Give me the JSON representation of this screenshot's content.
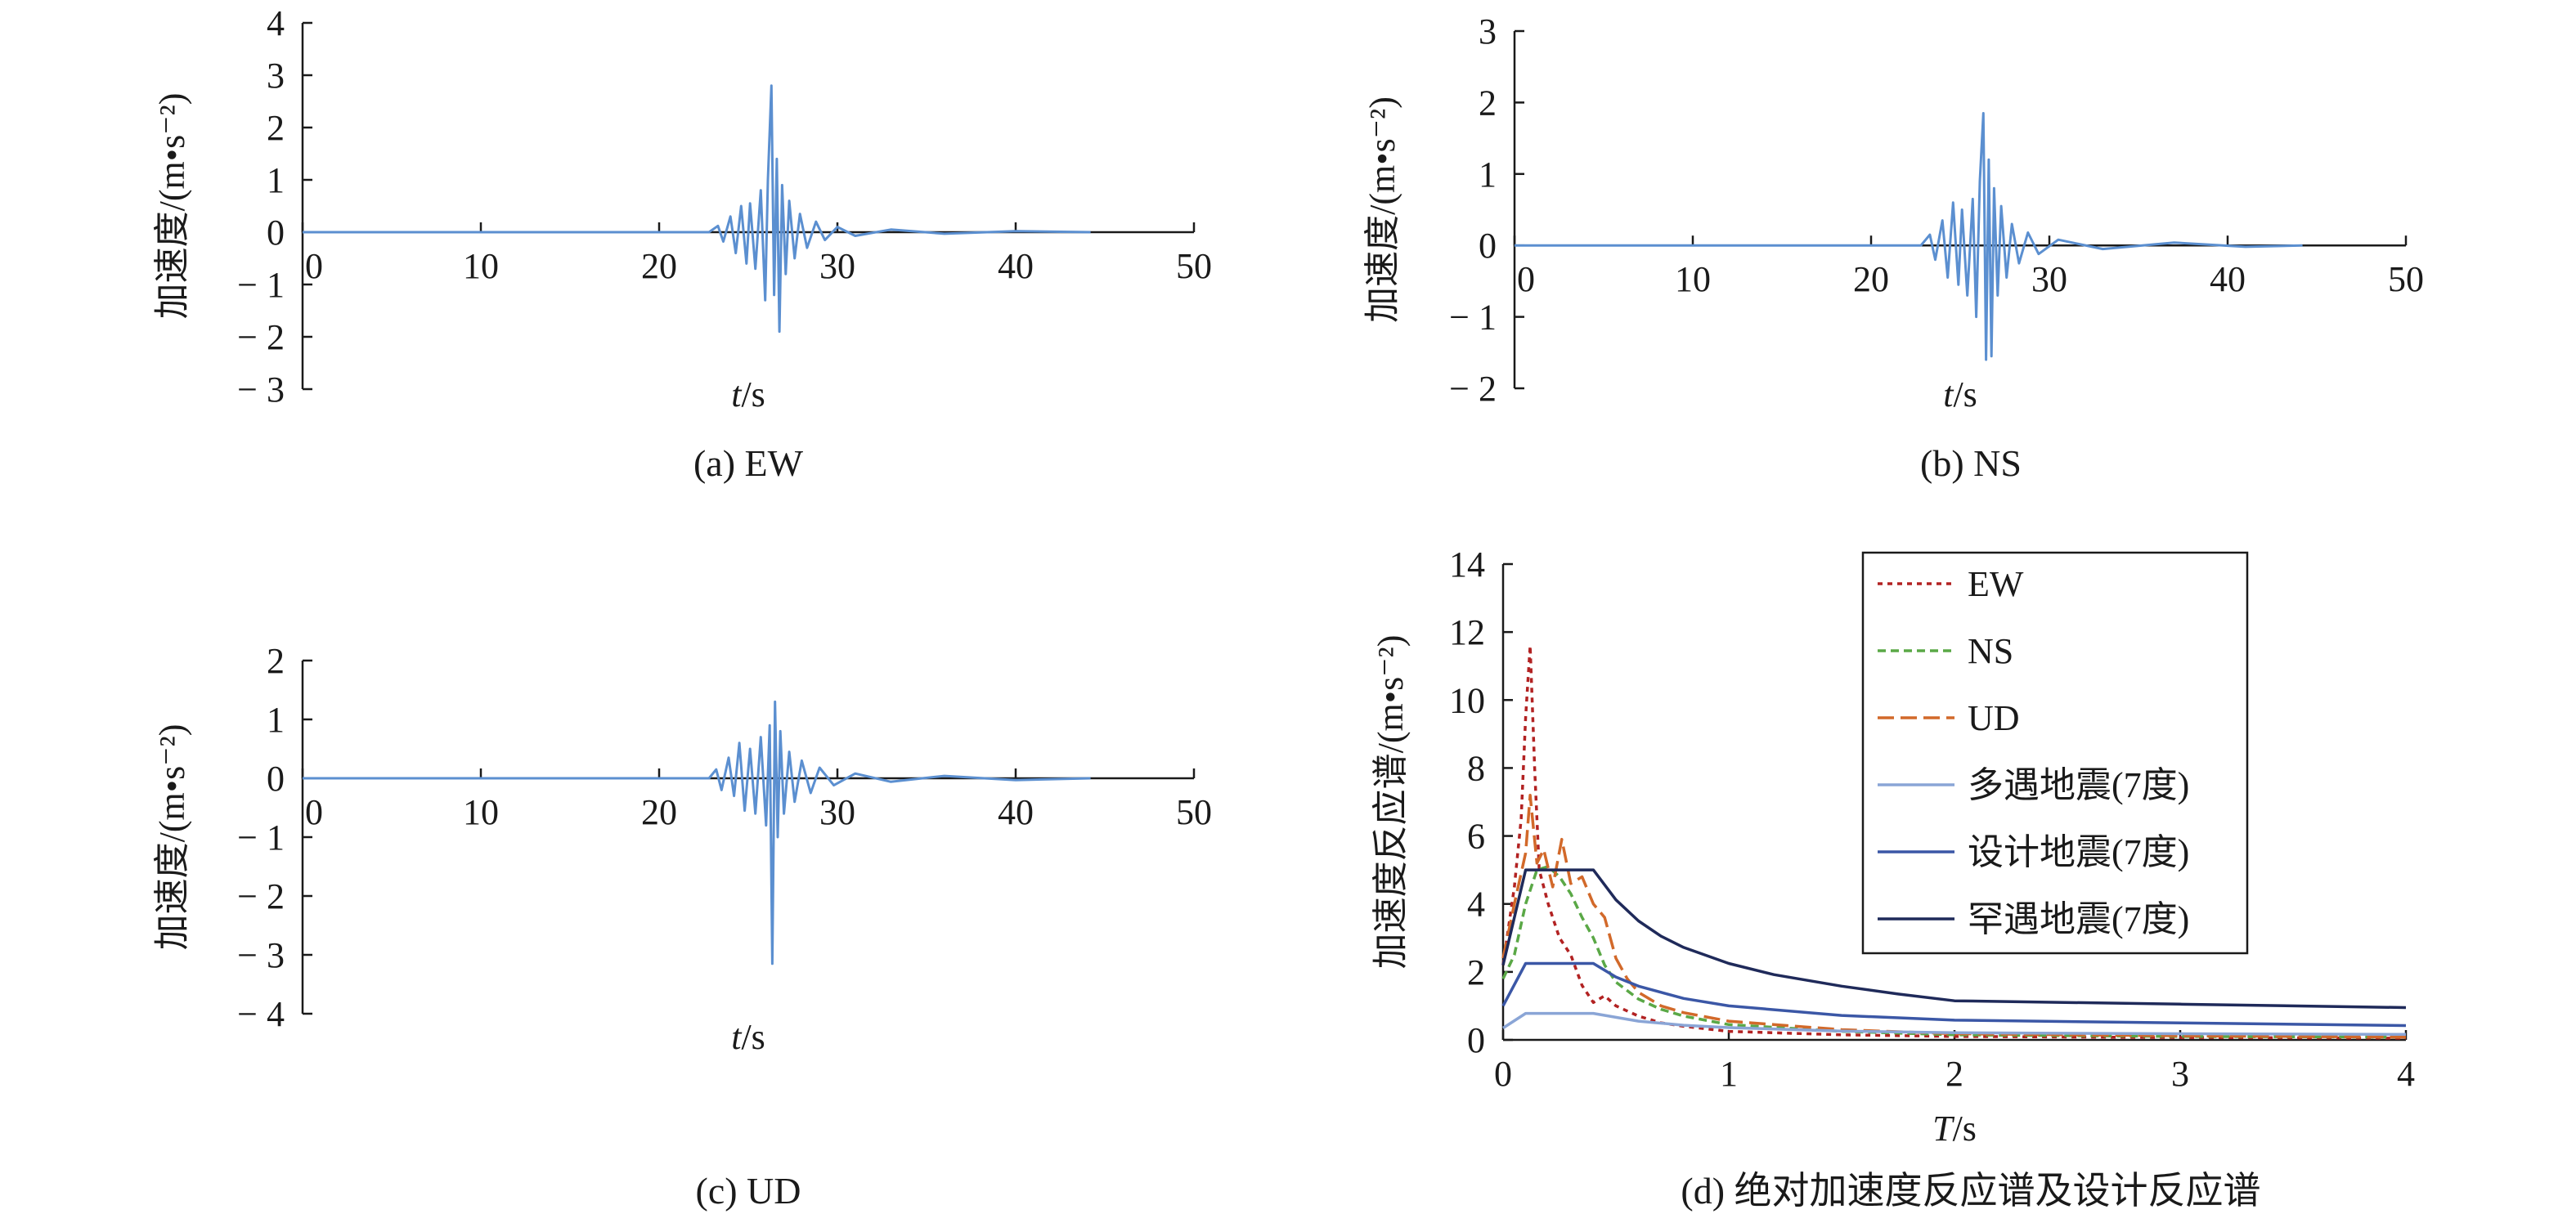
{
  "chart_data": [
    {
      "id": "a",
      "type": "line",
      "caption": "(a) EW",
      "xlabel_italic": "t",
      "xlabel_unit": "/s",
      "ylabel": "加速度/(m•s⁻²)",
      "xlim": [
        0,
        50
      ],
      "ylim": [
        -3,
        4
      ],
      "xticks": [
        0,
        10,
        20,
        30,
        40,
        50
      ],
      "yticks": [
        -3,
        -2,
        -1,
        0,
        1,
        2,
        3,
        4
      ],
      "series": [
        {
          "color": "#5b8fd0",
          "points": [
            [
              0,
              0
            ],
            [
              22.8,
              0
            ],
            [
              23.3,
              0.12
            ],
            [
              23.6,
              -0.18
            ],
            [
              24.0,
              0.3
            ],
            [
              24.3,
              -0.4
            ],
            [
              24.6,
              0.5
            ],
            [
              24.9,
              -0.6
            ],
            [
              25.1,
              0.55
            ],
            [
              25.4,
              -0.7
            ],
            [
              25.7,
              0.8
            ],
            [
              25.95,
              -1.3
            ],
            [
              26.1,
              1.0
            ],
            [
              26.3,
              2.8
            ],
            [
              26.45,
              -1.2
            ],
            [
              26.6,
              1.4
            ],
            [
              26.75,
              -1.9
            ],
            [
              26.9,
              0.9
            ],
            [
              27.1,
              -0.8
            ],
            [
              27.3,
              0.6
            ],
            [
              27.6,
              -0.5
            ],
            [
              27.9,
              0.35
            ],
            [
              28.3,
              -0.3
            ],
            [
              28.8,
              0.2
            ],
            [
              29.3,
              -0.15
            ],
            [
              30,
              0.1
            ],
            [
              31,
              -0.07
            ],
            [
              33,
              0.05
            ],
            [
              36,
              -0.03
            ],
            [
              40,
              0.02
            ],
            [
              44.2,
              0
            ]
          ]
        }
      ]
    },
    {
      "id": "b",
      "type": "line",
      "caption": "(b) NS",
      "xlabel_italic": "t",
      "xlabel_unit": "/s",
      "ylabel": "加速度/(m•s⁻²)",
      "xlim": [
        0,
        50
      ],
      "ylim": [
        -2,
        3
      ],
      "xticks": [
        0,
        10,
        20,
        30,
        40,
        50
      ],
      "yticks": [
        -2,
        -1,
        0,
        1,
        2,
        3
      ],
      "series": [
        {
          "color": "#5b8fd0",
          "points": [
            [
              0,
              0
            ],
            [
              22.8,
              0
            ],
            [
              23.3,
              0.15
            ],
            [
              23.6,
              -0.2
            ],
            [
              24.0,
              0.35
            ],
            [
              24.3,
              -0.45
            ],
            [
              24.6,
              0.6
            ],
            [
              24.9,
              -0.55
            ],
            [
              25.1,
              0.5
            ],
            [
              25.4,
              -0.7
            ],
            [
              25.7,
              0.65
            ],
            [
              25.9,
              -1.0
            ],
            [
              26.1,
              0.9
            ],
            [
              26.3,
              1.85
            ],
            [
              26.45,
              -1.6
            ],
            [
              26.6,
              1.2
            ],
            [
              26.75,
              -1.55
            ],
            [
              26.9,
              0.8
            ],
            [
              27.1,
              -0.7
            ],
            [
              27.3,
              0.55
            ],
            [
              27.6,
              -0.45
            ],
            [
              27.9,
              0.3
            ],
            [
              28.3,
              -0.25
            ],
            [
              28.8,
              0.18
            ],
            [
              29.4,
              -0.12
            ],
            [
              30.5,
              0.08
            ],
            [
              33,
              -0.05
            ],
            [
              37,
              0.04
            ],
            [
              41,
              -0.02
            ],
            [
              44.2,
              0
            ]
          ]
        }
      ]
    },
    {
      "id": "c",
      "type": "line",
      "caption": "(c) UD",
      "xlabel_italic": "t",
      "xlabel_unit": "/s",
      "ylabel": "加速度/(m•s⁻²)",
      "xlim": [
        0,
        50
      ],
      "ylim": [
        -4,
        2
      ],
      "xticks": [
        0,
        10,
        20,
        30,
        40,
        50
      ],
      "yticks": [
        -4,
        -3,
        -2,
        -1,
        0,
        1,
        2
      ],
      "series": [
        {
          "color": "#5b8fd0",
          "points": [
            [
              0,
              0
            ],
            [
              22.8,
              0
            ],
            [
              23.2,
              0.15
            ],
            [
              23.5,
              -0.2
            ],
            [
              23.9,
              0.35
            ],
            [
              24.2,
              -0.3
            ],
            [
              24.5,
              0.6
            ],
            [
              24.8,
              -0.55
            ],
            [
              25.1,
              0.5
            ],
            [
              25.4,
              -0.6
            ],
            [
              25.7,
              0.7
            ],
            [
              26.0,
              -0.8
            ],
            [
              26.2,
              0.9
            ],
            [
              26.35,
              -3.15
            ],
            [
              26.5,
              1.3
            ],
            [
              26.65,
              -1.0
            ],
            [
              26.8,
              0.8
            ],
            [
              27.0,
              -0.6
            ],
            [
              27.3,
              0.45
            ],
            [
              27.6,
              -0.4
            ],
            [
              28.0,
              0.3
            ],
            [
              28.5,
              -0.25
            ],
            [
              29.0,
              0.18
            ],
            [
              29.8,
              -0.12
            ],
            [
              31,
              0.08
            ],
            [
              33,
              -0.06
            ],
            [
              36,
              0.04
            ],
            [
              40,
              -0.03
            ],
            [
              44.2,
              0
            ]
          ]
        }
      ]
    },
    {
      "id": "d",
      "type": "line",
      "caption": "(d) 绝对加速度反应谱及设计反应谱",
      "xlabel_italic": "T",
      "xlabel_unit": "/s",
      "ylabel": "加速度反应谱/(m•s⁻²)",
      "xlim": [
        0,
        4
      ],
      "ylim": [
        0,
        14
      ],
      "xticks": [
        0,
        1,
        2,
        3,
        4
      ],
      "yticks": [
        0,
        2,
        4,
        6,
        8,
        10,
        12,
        14
      ],
      "legend_position": "top-right",
      "series": [
        {
          "name": "EW",
          "color": "#b22222",
          "dash": "6,6",
          "points": [
            [
              0,
              2.2
            ],
            [
              0.05,
              4.5
            ],
            [
              0.08,
              6.5
            ],
            [
              0.1,
              9.5
            ],
            [
              0.12,
              11.6
            ],
            [
              0.14,
              8.0
            ],
            [
              0.16,
              5.0
            ],
            [
              0.2,
              4.0
            ],
            [
              0.25,
              3.0
            ],
            [
              0.3,
              2.5
            ],
            [
              0.35,
              1.6
            ],
            [
              0.4,
              1.1
            ],
            [
              0.45,
              1.3
            ],
            [
              0.5,
              1.0
            ],
            [
              0.6,
              0.7
            ],
            [
              0.7,
              0.5
            ],
            [
              0.8,
              0.4
            ],
            [
              1.0,
              0.25
            ],
            [
              1.5,
              0.15
            ],
            [
              2.0,
              0.1
            ],
            [
              3.0,
              0.07
            ],
            [
              4.0,
              0.05
            ]
          ]
        },
        {
          "name": "NS",
          "color": "#5aa846",
          "dash": "10,6",
          "points": [
            [
              0,
              1.8
            ],
            [
              0.05,
              2.5
            ],
            [
              0.1,
              4.0
            ],
            [
              0.15,
              5.0
            ],
            [
              0.2,
              5.1
            ],
            [
              0.25,
              4.8
            ],
            [
              0.3,
              4.3
            ],
            [
              0.35,
              3.6
            ],
            [
              0.4,
              3.0
            ],
            [
              0.45,
              2.2
            ],
            [
              0.5,
              1.7
            ],
            [
              0.6,
              1.2
            ],
            [
              0.7,
              0.9
            ],
            [
              0.8,
              0.7
            ],
            [
              1.0,
              0.45
            ],
            [
              1.5,
              0.25
            ],
            [
              2.0,
              0.15
            ],
            [
              3.0,
              0.1
            ],
            [
              4.0,
              0.08
            ]
          ]
        },
        {
          "name": "UD",
          "color": "#d2692a",
          "dash": "20,8",
          "points": [
            [
              0,
              2.4
            ],
            [
              0.05,
              4.0
            ],
            [
              0.1,
              5.5
            ],
            [
              0.12,
              7.2
            ],
            [
              0.15,
              5.2
            ],
            [
              0.18,
              5.6
            ],
            [
              0.22,
              4.5
            ],
            [
              0.26,
              5.9
            ],
            [
              0.3,
              4.6
            ],
            [
              0.35,
              4.8
            ],
            [
              0.4,
              4.0
            ],
            [
              0.45,
              3.6
            ],
            [
              0.5,
              2.4
            ],
            [
              0.55,
              1.8
            ],
            [
              0.6,
              1.4
            ],
            [
              0.7,
              1.0
            ],
            [
              0.8,
              0.8
            ],
            [
              1.0,
              0.55
            ],
            [
              1.5,
              0.3
            ],
            [
              2.0,
              0.18
            ],
            [
              3.0,
              0.12
            ],
            [
              4.0,
              0.08
            ]
          ]
        },
        {
          "name": "多遇地震(7度)",
          "color": "#8aa5d6",
          "dash": "",
          "points": [
            [
              0,
              0.35
            ],
            [
              0.1,
              0.78
            ],
            [
              0.4,
              0.78
            ],
            [
              0.6,
              0.55
            ],
            [
              0.8,
              0.43
            ],
            [
              1.0,
              0.36
            ],
            [
              1.5,
              0.26
            ],
            [
              2.0,
              0.21
            ],
            [
              3.0,
              0.18
            ],
            [
              4.0,
              0.16
            ]
          ]
        },
        {
          "name": "设计地震(7度)",
          "color": "#3b57a6",
          "dash": "",
          "points": [
            [
              0,
              1.0
            ],
            [
              0.1,
              2.25
            ],
            [
              0.4,
              2.25
            ],
            [
              0.5,
              1.85
            ],
            [
              0.6,
              1.58
            ],
            [
              0.8,
              1.22
            ],
            [
              1.0,
              1.0
            ],
            [
              1.5,
              0.72
            ],
            [
              2.0,
              0.58
            ],
            [
              3.0,
              0.5
            ],
            [
              4.0,
              0.42
            ]
          ]
        },
        {
          "name": "罕遇地震(7度)",
          "color": "#1f2a5a",
          "dash": "",
          "points": [
            [
              0,
              2.2
            ],
            [
              0.1,
              5.0
            ],
            [
              0.4,
              5.0
            ],
            [
              0.5,
              4.12
            ],
            [
              0.6,
              3.5
            ],
            [
              0.7,
              3.05
            ],
            [
              0.8,
              2.72
            ],
            [
              1.0,
              2.25
            ],
            [
              1.2,
              1.92
            ],
            [
              1.5,
              1.58
            ],
            [
              1.75,
              1.35
            ],
            [
              2.0,
              1.15
            ],
            [
              3.0,
              1.05
            ],
            [
              4.0,
              0.95
            ]
          ]
        }
      ]
    }
  ]
}
